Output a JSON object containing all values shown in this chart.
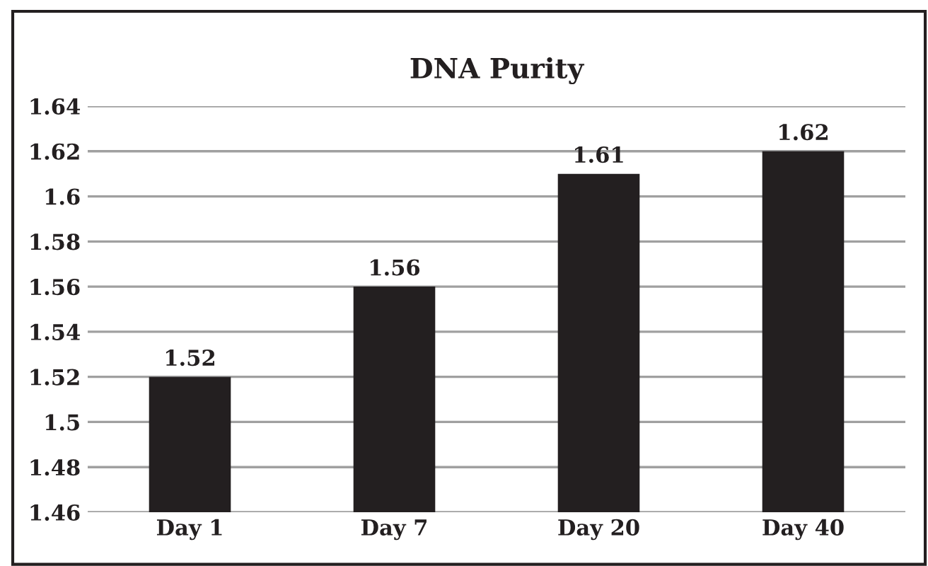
{
  "chart_data": {
    "type": "bar",
    "title": "DNA Purity",
    "categories": [
      "Day 1",
      "Day 7",
      "Day 20",
      "Day 40"
    ],
    "values": [
      1.52,
      1.56,
      1.61,
      1.62
    ],
    "color": "#231f20",
    "ylim": [
      1.46,
      1.64
    ],
    "yticks": [
      1.46,
      1.48,
      1.5,
      1.52,
      1.54,
      1.56,
      1.58,
      1.6,
      1.62,
      1.64
    ],
    "grid": "y",
    "data_labels": true
  }
}
